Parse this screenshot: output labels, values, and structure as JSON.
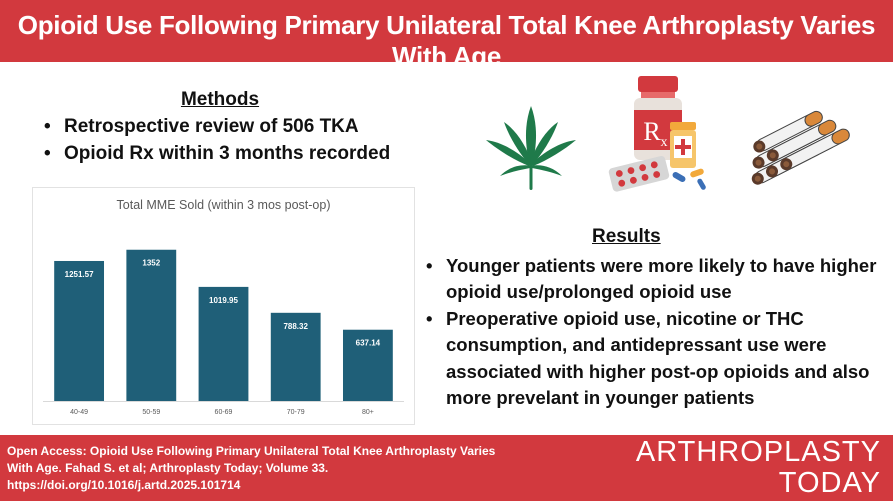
{
  "header": {
    "title": "Opioid Use Following Primary Unilateral Total Knee Arthroplasty Varies With Age"
  },
  "methods": {
    "heading": "Methods",
    "items": [
      "Retrospective review of 506 TKA",
      "Opioid Rx within 3 months recorded"
    ]
  },
  "icons": [
    "cannabis-leaf-icon",
    "pill-bottles-icon",
    "cigarettes-icon"
  ],
  "chart_data": {
    "type": "bar",
    "title": "Total MME Sold (within 3 mos post-op)",
    "categories": [
      "40-49",
      "50-59",
      "60-69",
      "70-79",
      "80+"
    ],
    "values": [
      1251.57,
      1352,
      1019.95,
      788.32,
      637.14
    ],
    "value_labels": [
      "1251.57",
      "1352",
      "1019.95",
      "788.32",
      "637.14"
    ],
    "ylim": [
      0,
      1600
    ],
    "grid": false,
    "bar_color": "#1f5f78"
  },
  "results": {
    "heading": "Results",
    "items": [
      "Younger patients were more likely to have higher opioid use/prolonged opioid use",
      "Preoperative opioid use, nicotine or THC consumption, and antidepressant use were associated with higher post-op opioids and also more prevelant in younger patients"
    ]
  },
  "footer": {
    "citation_line1": "Open Access: Opioid Use Following Primary Unilateral Total Knee Arthroplasty Varies",
    "citation_line2": "With Age. Fahad S. et al; Arthroplasty Today; Volume 33.",
    "citation_line3": "https://doi.org/10.1016/j.artd.2025.101714",
    "brand_line1": "ARTHROPLASTY",
    "brand_line2": "TODAY"
  },
  "colors": {
    "accent": "#d2393e",
    "bar": "#1f5f78",
    "leaf": "#1f7a4a"
  }
}
